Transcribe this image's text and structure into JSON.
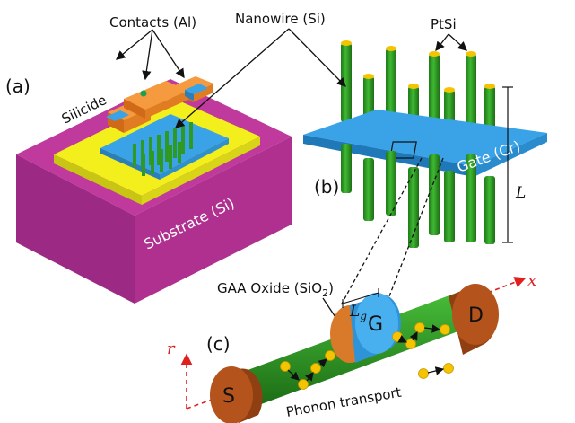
{
  "labels": {
    "contacts": "Contacts (Al)",
    "nanowire": "Nanowire (Si)",
    "ptsi": "PtSi",
    "panel_a": "(a)",
    "panel_b": "(b)",
    "panel_c": "(c)",
    "silicide": "Silicide",
    "substrate": "Substrate (Si)",
    "gate": "Gate (Cr)",
    "length": "L",
    "gaa_oxide_prefix": "GAA Oxide (SiO",
    "gaa_oxide_sub": "2",
    "gaa_oxide_suffix": ")",
    "gate_length_main": "L",
    "gate_length_sub": "g",
    "source": "S",
    "gate_terminal": "G",
    "drain": "D",
    "phonon": "Phonon transport",
    "axis_x": "x",
    "axis_r": "r"
  },
  "colors": {
    "substrate": "#c0399c",
    "silicide": "#f2ef1c",
    "gate": "#3aa3e8",
    "nanowire": "#2e9a24",
    "contact": "#f2882a",
    "terminal": "#b4541c",
    "phonon": "#f5c400",
    "axis": "#e0201f"
  }
}
